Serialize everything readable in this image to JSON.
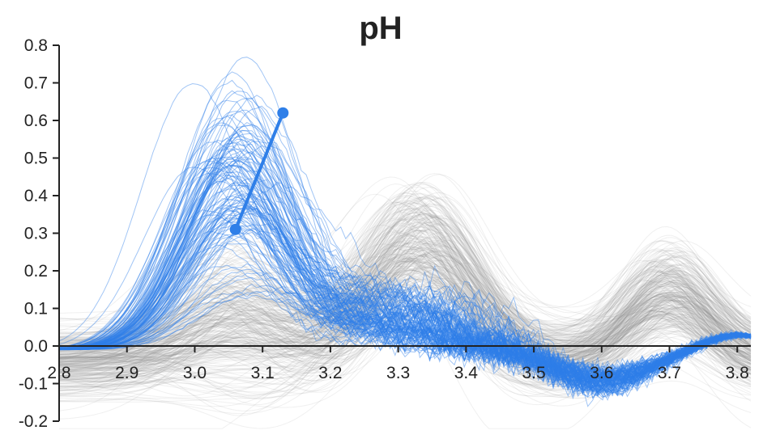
{
  "chart_data": {
    "type": "line",
    "title": "pH",
    "xlabel": "",
    "ylabel": "",
    "xlim": [
      2.8,
      3.82
    ],
    "ylim": [
      -0.2,
      0.8
    ],
    "x_ticks": [
      "2.8",
      "2.9",
      "3.0",
      "3.1",
      "3.2",
      "3.3",
      "3.4",
      "3.5",
      "3.6",
      "3.7",
      "3.8"
    ],
    "y_ticks": [
      "0.8",
      "0.7",
      "0.6",
      "0.5",
      "0.4",
      "0.3",
      "0.2",
      "0.1",
      "0.0",
      "-0.1",
      "-0.2"
    ],
    "grid": false,
    "legend": "none",
    "series": [
      {
        "group": "gray",
        "color": "#8a8a8a",
        "curve_count": 300,
        "peaks": [
          {
            "x": 3.06,
            "y": 0.12
          },
          {
            "x": 3.33,
            "y": 0.43
          },
          {
            "x": 3.7,
            "y": 0.26
          }
        ]
      },
      {
        "group": "highlighted",
        "color": "#2f7fe8",
        "curve_count": 120,
        "peaks": [
          {
            "x": 3.06,
            "y": 0.45
          },
          {
            "x": 3.28,
            "y": 0.12
          }
        ]
      }
    ],
    "annotation": {
      "type": "segment",
      "color": "#2f7fe8",
      "start": {
        "x": 3.06,
        "y": 0.31
      },
      "end": {
        "x": 3.13,
        "y": 0.62
      }
    }
  }
}
